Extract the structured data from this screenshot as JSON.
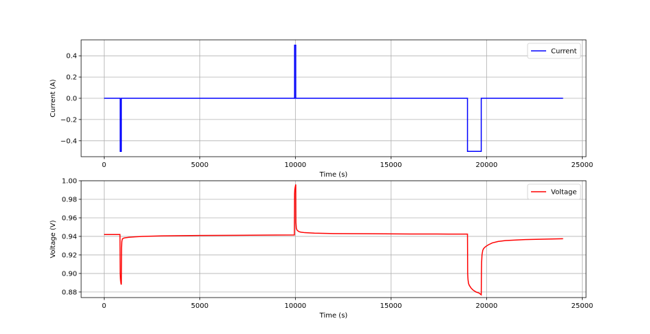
{
  "chart_data": [
    {
      "type": "line",
      "xlabel": "Time (s)",
      "ylabel": "Current (A)",
      "xlim": [
        -1200,
        25200
      ],
      "ylim": [
        -0.55,
        0.55
      ],
      "xticks": [
        0,
        5000,
        10000,
        15000,
        20000,
        25000
      ],
      "xtick_labels": [
        "0",
        "5000",
        "10000",
        "15000",
        "20000",
        "25000"
      ],
      "yticks": [
        -0.4,
        -0.2,
        0.0,
        0.2,
        0.4
      ],
      "ytick_labels": [
        "−0.4",
        "−0.2",
        "0.0",
        "0.2",
        "0.4"
      ],
      "grid": true,
      "legend": "top-right",
      "series": [
        {
          "name": "Current",
          "color": "#0000ff",
          "x": [
            0,
            840,
            840,
            900,
            900,
            9960,
            9960,
            10020,
            10020,
            19000,
            19000,
            19720,
            19720,
            24000
          ],
          "y": [
            0,
            0,
            -0.5,
            -0.5,
            0,
            0,
            0.5,
            0.5,
            0,
            0,
            -0.5,
            -0.5,
            0,
            0
          ]
        }
      ]
    },
    {
      "type": "line",
      "xlabel": "Time (s)",
      "ylabel": "Voltage (V)",
      "xlim": [
        -1200,
        25200
      ],
      "ylim": [
        0.874,
        1.0
      ],
      "xticks": [
        0,
        5000,
        10000,
        15000,
        20000,
        25000
      ],
      "xtick_labels": [
        "0",
        "5000",
        "10000",
        "15000",
        "20000",
        "25000"
      ],
      "yticks": [
        0.88,
        0.9,
        0.92,
        0.94,
        0.96,
        0.98,
        1.0
      ],
      "ytick_labels": [
        "0.88",
        "0.90",
        "0.92",
        "0.94",
        "0.96",
        "0.98",
        "1.00"
      ],
      "grid": true,
      "legend": "top-right",
      "series": [
        {
          "name": "Voltage",
          "color": "#ff0000",
          "x": [
            0,
            830,
            840,
            855,
            870,
            885,
            900,
            910,
            925,
            950,
            1000,
            1100,
            1300,
            1600,
            2000,
            3000,
            5000,
            7000,
            9000,
            9950,
            9960,
            9970,
            9990,
            10010,
            10020,
            10030,
            10050,
            10080,
            10130,
            10200,
            10300,
            10500,
            11000,
            12000,
            14000,
            16000,
            18000,
            19000,
            19010,
            19030,
            19060,
            19100,
            19200,
            19300,
            19450,
            19600,
            19720,
            19730,
            19740,
            19760,
            19800,
            19850,
            19950,
            20100,
            20300,
            20600,
            21000,
            22000,
            23000,
            24000
          ],
          "y": [
            0.942,
            0.942,
            0.9,
            0.894,
            0.891,
            0.889,
            0.888,
            0.928,
            0.934,
            0.937,
            0.938,
            0.9385,
            0.939,
            0.9395,
            0.94,
            0.9405,
            0.941,
            0.9412,
            0.9414,
            0.9415,
            0.986,
            0.99,
            0.993,
            0.995,
            0.996,
            0.955,
            0.949,
            0.947,
            0.946,
            0.945,
            0.9445,
            0.944,
            0.9435,
            0.943,
            0.9428,
            0.9426,
            0.9425,
            0.9425,
            0.9,
            0.893,
            0.889,
            0.887,
            0.884,
            0.882,
            0.88,
            0.879,
            0.877,
            0.9,
            0.912,
            0.92,
            0.925,
            0.927,
            0.929,
            0.931,
            0.933,
            0.9345,
            0.9355,
            0.9365,
            0.937,
            0.9375
          ]
        }
      ]
    }
  ]
}
